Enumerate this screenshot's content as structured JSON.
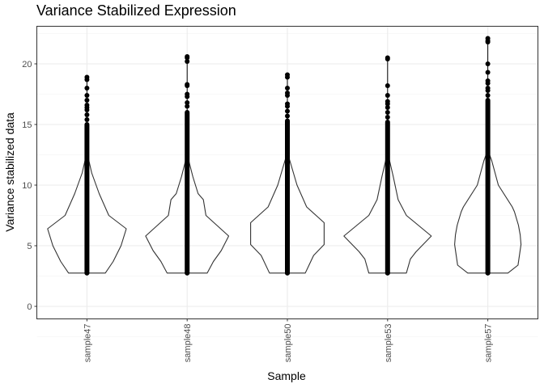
{
  "chart_data": {
    "type": "violin",
    "title": "Variance Stabilized Expression",
    "xlabel": "Sample",
    "ylabel": "Variance stabilized data",
    "ylim": [
      -1,
      23.2
    ],
    "yticks": [
      0,
      5,
      10,
      15,
      20
    ],
    "grid": true,
    "categories": [
      "sample47",
      "sample48",
      "sample50",
      "sample53",
      "sample57"
    ],
    "series": [
      {
        "name": "sample47",
        "min": 2.75,
        "dense_top": 15.0,
        "outliers": [
          15.4,
          15.8,
          16.2,
          16.4,
          16.6,
          17.0,
          17.4,
          18.0,
          18.7,
          18.9
        ],
        "density": [
          [
            2.75,
            0.42
          ],
          [
            3.7,
            0.6
          ],
          [
            5.0,
            0.78
          ],
          [
            6.4,
            0.9
          ],
          [
            7.5,
            0.5
          ],
          [
            9.3,
            0.28
          ],
          [
            11.0,
            0.11
          ],
          [
            12.4,
            0.02
          ],
          [
            12.8,
            0
          ]
        ]
      },
      {
        "name": "sample48",
        "min": 2.75,
        "dense_top": 16.0,
        "outliers": [
          16.5,
          16.8,
          17.3,
          17.5,
          18.2,
          18.3,
          20.2,
          20.5,
          20.6
        ],
        "density": [
          [
            2.75,
            0.46
          ],
          [
            3.7,
            0.6
          ],
          [
            4.6,
            0.78
          ],
          [
            5.8,
            0.95
          ],
          [
            7.5,
            0.43
          ],
          [
            8.8,
            0.37
          ],
          [
            9.3,
            0.25
          ],
          [
            10.7,
            0.13
          ],
          [
            12.4,
            0.01
          ],
          [
            12.8,
            0
          ]
        ]
      },
      {
        "name": "sample50",
        "min": 2.75,
        "dense_top": 15.3,
        "outliers": [
          15.7,
          16.1,
          16.5,
          16.7,
          17.4,
          17.6,
          18.0,
          18.9,
          19.1
        ],
        "density": [
          [
            2.75,
            0.41
          ],
          [
            4.2,
            0.6
          ],
          [
            5.1,
            0.84
          ],
          [
            6.9,
            0.84
          ],
          [
            8.2,
            0.44
          ],
          [
            10.0,
            0.22
          ],
          [
            12.2,
            0.04
          ],
          [
            12.7,
            0
          ]
        ]
      },
      {
        "name": "sample53",
        "min": 2.75,
        "dense_top": 15.2,
        "outliers": [
          15.6,
          16.0,
          16.4,
          16.7,
          16.9,
          17.4,
          18.2,
          20.4,
          20.5
        ],
        "density": [
          [
            2.75,
            0.43
          ],
          [
            3.9,
            0.52
          ],
          [
            4.5,
            0.65
          ],
          [
            5.8,
            1.0
          ],
          [
            7.5,
            0.43
          ],
          [
            8.8,
            0.24
          ],
          [
            10.7,
            0.13
          ],
          [
            12.4,
            0.02
          ],
          [
            12.8,
            0
          ]
        ]
      },
      {
        "name": "sample57",
        "min": 2.75,
        "dense_top": 17.0,
        "outliers": [
          17.4,
          17.8,
          18.0,
          18.4,
          18.6,
          19.3,
          20.0,
          21.8,
          21.9,
          22.1
        ],
        "density": [
          [
            2.75,
            0.46
          ],
          [
            3.4,
            0.69
          ],
          [
            5.1,
            0.76
          ],
          [
            5.9,
            0.74
          ],
          [
            6.7,
            0.7
          ],
          [
            7.8,
            0.61
          ],
          [
            8.2,
            0.56
          ],
          [
            10.0,
            0.24
          ],
          [
            12.0,
            0.09
          ],
          [
            12.9,
            0
          ]
        ]
      }
    ]
  }
}
